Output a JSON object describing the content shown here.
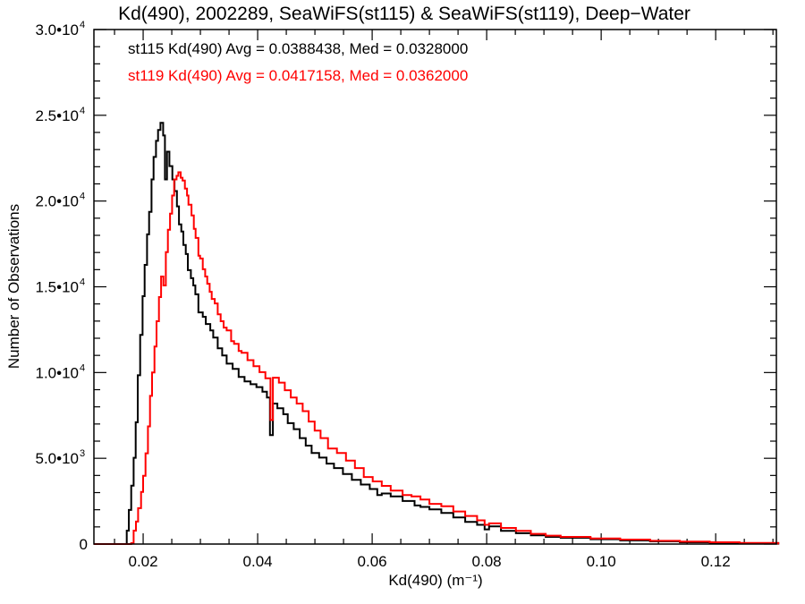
{
  "chart_data": {
    "type": "line",
    "drawstyle": "steps",
    "title": "Kd(490), 2002289, SeaWiFS(st115) & SeaWiFS(st119), Deep−Water",
    "xlabel": "Kd(490) (m⁻¹)",
    "ylabel": "Number of Observations",
    "xlim": [
      0.0114,
      0.1306
    ],
    "ylim": [
      0,
      30000
    ],
    "grid": false,
    "x_ticks": [
      0.02,
      0.04,
      0.06,
      0.08,
      0.1,
      0.12
    ],
    "x_tick_labels": [
      "0.02",
      "0.04",
      "0.06",
      "0.08",
      "0.10",
      "0.12"
    ],
    "x_minor_step": 0.005,
    "y_ticks": [
      0,
      5000,
      10000,
      15000,
      20000,
      25000,
      30000
    ],
    "y_tick_labels": [
      {
        "mant": "0",
        "exp": ""
      },
      {
        "mant": "5.0•10",
        "exp": "3"
      },
      {
        "mant": "1.0•10",
        "exp": "4"
      },
      {
        "mant": "1.5•10",
        "exp": "4"
      },
      {
        "mant": "2.0•10",
        "exp": "4"
      },
      {
        "mant": "2.5•10",
        "exp": "4"
      },
      {
        "mant": "3.0•10",
        "exp": "4"
      }
    ],
    "y_minor_step": 1000,
    "annotations": [
      {
        "text": "st115 Kd(490) Avg = 0.0388438, Med = 0.0328000",
        "color": "#000000"
      },
      {
        "text": "st119 Kd(490) Avg = 0.0417158, Med = 0.0362000",
        "color": "#ff0000"
      }
    ],
    "series": [
      {
        "name": "st115",
        "color": "#000000",
        "x": [
          0.0114,
          0.01714,
          0.0175,
          0.01792,
          0.01833,
          0.0187,
          0.01906,
          0.01948,
          0.0199,
          0.02026,
          0.02068,
          0.02104,
          0.02146,
          0.02182,
          0.02224,
          0.0226,
          0.02302,
          0.02349,
          0.0238,
          0.02417,
          0.02458,
          0.0251,
          0.02547,
          0.02589,
          0.02625,
          0.02667,
          0.02703,
          0.02745,
          0.02781,
          0.02833,
          0.02875,
          0.02911,
          0.02964,
          0.03042,
          0.03094,
          0.03172,
          0.03224,
          0.03302,
          0.0338,
          0.03458,
          0.03563,
          0.03667,
          0.03771,
          0.03875,
          0.03979,
          0.04083,
          0.04161,
          0.04214,
          0.04266,
          0.04344,
          0.04448,
          0.04526,
          0.0463,
          0.04734,
          0.04839,
          0.04943,
          0.05073,
          0.05203,
          0.05333,
          0.0549,
          0.05646,
          0.05802,
          0.05958,
          0.06089,
          0.06167,
          0.06323,
          0.06531,
          0.0674,
          0.06844,
          0.07,
          0.07208,
          0.07417,
          0.07625,
          0.07833,
          0.07964,
          0.08042,
          0.0825,
          0.0851,
          0.08771,
          0.09031,
          0.09292,
          0.09813,
          0.10333,
          0.10854,
          0.11375,
          0.11896,
          0.12417,
          0.13094
        ],
        "y": [
          0,
          785,
          1990,
          3400,
          5030,
          7100,
          9840,
          12200,
          14450,
          16280,
          18060,
          19370,
          21260,
          22570,
          23510,
          24140,
          24560,
          23820,
          21260,
          22880,
          22040,
          21260,
          20580,
          19690,
          18640,
          18220,
          17440,
          16910,
          15970,
          15500,
          15080,
          14560,
          13510,
          13250,
          12830,
          12460,
          12040,
          11410,
          11000,
          10520,
          10210,
          9740,
          9480,
          9320,
          9150,
          8880,
          8540,
          6350,
          8190,
          7920,
          7570,
          7050,
          6700,
          6180,
          5740,
          5310,
          5040,
          4690,
          4430,
          4080,
          3740,
          3470,
          3210,
          2860,
          2950,
          2780,
          2510,
          2250,
          2165,
          2025,
          1815,
          1550,
          1290,
          1120,
          855,
          1030,
          770,
          630,
          505,
          420,
          365,
          280,
          210,
          155,
          105,
          70,
          35,
          20
        ]
      },
      {
        "name": "st119",
        "color": "#ff0000",
        "x": [
          0.0114,
          0.01792,
          0.01833,
          0.01875,
          0.01911,
          0.01963,
          0.02,
          0.02042,
          0.02083,
          0.0212,
          0.02156,
          0.02198,
          0.02234,
          0.02276,
          0.02313,
          0.02354,
          0.02396,
          0.02432,
          0.02469,
          0.02505,
          0.02542,
          0.02583,
          0.02615,
          0.02656,
          0.02688,
          0.02729,
          0.02766,
          0.02792,
          0.02844,
          0.02885,
          0.02917,
          0.02964,
          0.02995,
          0.03042,
          0.03083,
          0.0312,
          0.03161,
          0.03198,
          0.0325,
          0.03302,
          0.03354,
          0.03406,
          0.03458,
          0.03536,
          0.03588,
          0.03667,
          0.03719,
          0.03823,
          0.03927,
          0.04031,
          0.04135,
          0.04224,
          0.04266,
          0.0437,
          0.04474,
          0.04578,
          0.04682,
          0.04786,
          0.04891,
          0.04995,
          0.05099,
          0.05229,
          0.05385,
          0.05542,
          0.05698,
          0.05854,
          0.0601,
          0.06167,
          0.06323,
          0.06531,
          0.06688,
          0.06844,
          0.07,
          0.07208,
          0.07417,
          0.07625,
          0.07833,
          0.07964,
          0.08042,
          0.0825,
          0.0851,
          0.08771,
          0.09031,
          0.09292,
          0.09813,
          0.10333,
          0.10854,
          0.11375,
          0.11896,
          0.12417,
          0.13094
        ],
        "y": [
          0,
          50,
          785,
          1310,
          2090,
          3040,
          3980,
          5290,
          6860,
          8640,
          10000,
          11520,
          12990,
          14400,
          15600,
          15080,
          17020,
          18330,
          19270,
          20320,
          21260,
          21470,
          21680,
          21360,
          21200,
          20730,
          20320,
          19790,
          19160,
          18380,
          17850,
          16810,
          16650,
          16020,
          15600,
          15180,
          14710,
          14290,
          14030,
          13400,
          12990,
          12620,
          12460,
          11830,
          11670,
          11260,
          11150,
          10720,
          10370,
          10020,
          9670,
          7230,
          9700,
          9410,
          8970,
          8540,
          8190,
          7750,
          7140,
          6610,
          6180,
          5570,
          5310,
          4870,
          4430,
          3910,
          3650,
          3390,
          3120,
          2860,
          2775,
          2600,
          2340,
          2200,
          1900,
          1640,
          1380,
          1120,
          1205,
          940,
          770,
          595,
          490,
          420,
          330,
          260,
          190,
          140,
          105,
          70,
          40
        ]
      }
    ]
  }
}
